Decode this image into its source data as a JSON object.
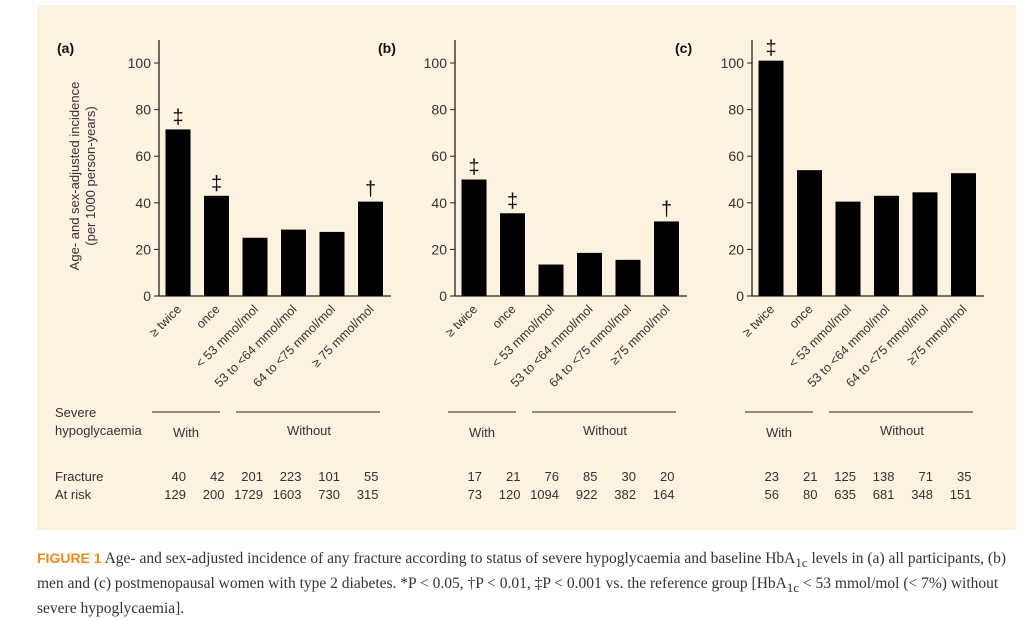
{
  "chart_data": [
    {
      "type": "bar",
      "panel": "(a)",
      "ylabel": "Age- and sex-adjusted incidence",
      "ylabel2": "(per 1000 person-years)",
      "yticks": [
        0,
        20,
        40,
        60,
        80,
        100
      ],
      "ylim": [
        0,
        110
      ],
      "categories": [
        "≥ twice",
        "once",
        "< 53 mmol/mol",
        "53 to <64 mmol/mol",
        "64 to <75 mmol/mol",
        "≥ 75 mmol/mol"
      ],
      "values": [
        71.5,
        43,
        25,
        28.5,
        27.5,
        40.5
      ],
      "markers": [
        "‡",
        "‡",
        "",
        "",
        "",
        "†"
      ],
      "fracture": [
        "40",
        "42",
        "201",
        "223",
        "101",
        "55"
      ],
      "at_risk": [
        "129",
        "200",
        "1729",
        "1603",
        "730",
        "315"
      ]
    },
    {
      "type": "bar",
      "panel": "(b)",
      "yticks": [
        0,
        20,
        40,
        60,
        80,
        100
      ],
      "ylim": [
        0,
        110
      ],
      "categories": [
        "≥ twice",
        "once",
        "< 53 mmol/mol",
        "53 to <64 mmol/mol",
        "64 to <75 mmol/mol",
        "≥75 mmol/mol"
      ],
      "values": [
        50,
        35.5,
        13.5,
        18.5,
        15.5,
        32
      ],
      "markers": [
        "‡",
        "‡",
        "",
        "",
        "",
        "†"
      ],
      "fracture": [
        "17",
        "21",
        "76",
        "85",
        "30",
        "20"
      ],
      "at_risk": [
        "73",
        "120",
        "1094",
        "922",
        "382",
        "164"
      ]
    },
    {
      "type": "bar",
      "panel": "(c)",
      "yticks": [
        0,
        20,
        40,
        60,
        80,
        100
      ],
      "ylim": [
        0,
        110
      ],
      "categories": [
        "≥ twice",
        "once",
        "< 53 mmol/mol",
        "53 to <64 mmol/mol",
        "64 to <75 mmol/mol",
        "≥75 mmol/mol"
      ],
      "values": [
        101,
        54,
        40.5,
        43,
        44.5,
        52.7
      ],
      "markers": [
        "‡",
        "",
        "",
        "",
        "",
        ""
      ],
      "fracture": [
        "23",
        "21",
        "125",
        "138",
        "71",
        "35"
      ],
      "at_risk": [
        "56",
        "80",
        "635",
        "681",
        "348",
        "151"
      ]
    }
  ],
  "table": {
    "row_header_1": "Severe",
    "row_header_2": "hypoglycaemia",
    "with": "With",
    "without": "Without",
    "fracture": "Fracture",
    "at_risk": "At risk"
  },
  "caption": {
    "label": "FIGURE 1",
    "text": " Age- and sex-adjusted incidence of any fracture according to status of severe hypoglycaemia and baseline HbA",
    "sub1": "1c",
    "text2": " levels in (a) all participants, (b) men and (c) postmenopausal women with type 2 diabetes. *P < 0.05, †P < 0.01, ‡P < 0.001 vs. the reference group [HbA",
    "sub2": "1c",
    "text3": " < 53 mmol/mol (< 7%) without severe hypoglycaemia]."
  },
  "colors": {
    "bar": "#000000",
    "background": "#fdf1df",
    "accent": "#f08a1c"
  }
}
